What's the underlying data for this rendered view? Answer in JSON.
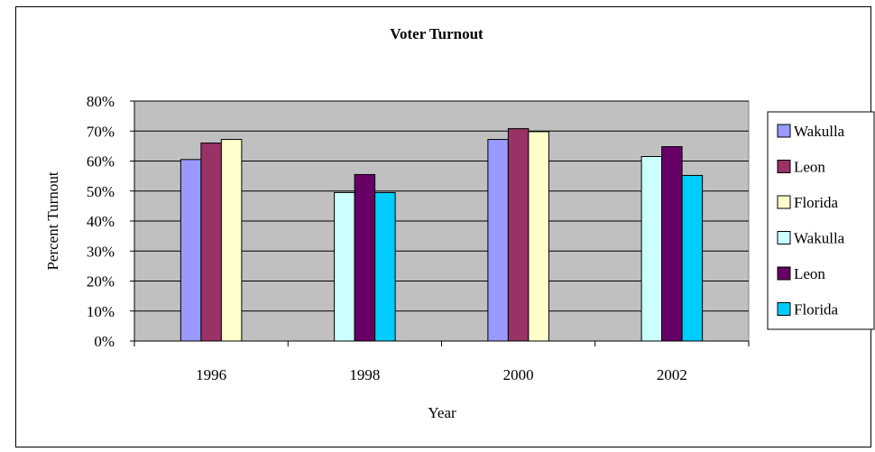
{
  "chart_data": {
    "type": "bar",
    "title": "Voter Turnout",
    "xlabel": "Year",
    "ylabel": "Percent Turnout",
    "categories": [
      "1996",
      "1998",
      "2000",
      "2002"
    ],
    "ylim": [
      0,
      0.8
    ],
    "yticks": [
      "0%",
      "10%",
      "20%",
      "30%",
      "40%",
      "50%",
      "60%",
      "70%",
      "80%"
    ],
    "grid": true,
    "legend_position": "right",
    "plot_background": "#C0C0C0",
    "series": [
      {
        "name": "Wakulla",
        "color": "#9999FF",
        "values": [
          0.605,
          null,
          0.672,
          null
        ]
      },
      {
        "name": "Leon",
        "color": "#993366",
        "values": [
          0.66,
          null,
          0.708,
          null
        ]
      },
      {
        "name": "Florida",
        "color": "#FFFFCC",
        "values": [
          0.672,
          null,
          0.698,
          null
        ]
      },
      {
        "name": "Wakulla",
        "color": "#CCFFFF",
        "values": [
          null,
          0.495,
          null,
          0.615
        ]
      },
      {
        "name": "Leon",
        "color": "#660066",
        "values": [
          null,
          0.555,
          null,
          0.648
        ]
      },
      {
        "name": "Florida",
        "color": "#00CCFF",
        "values": [
          null,
          0.495,
          null,
          0.552
        ]
      }
    ]
  }
}
